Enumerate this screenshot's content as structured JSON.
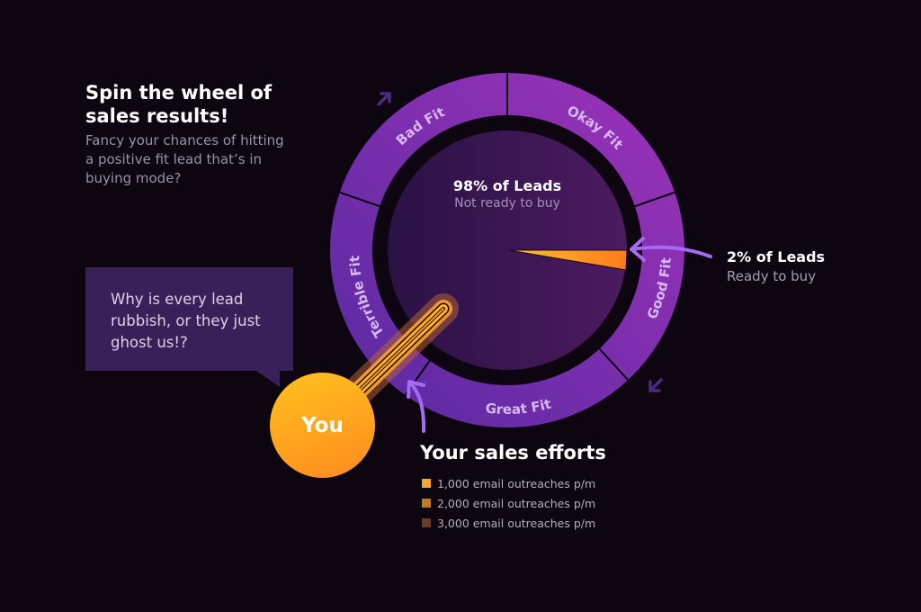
{
  "intro": {
    "title": "Spin the wheel of sales results!",
    "subtitle": "Fancy your chances of hitting a positive fit lead that’s in buying mode?"
  },
  "bubble": {
    "text": "Why is every lead rubbish, or they just ghost us!?"
  },
  "wheel": {
    "segments": [
      "Bad Fit",
      "Okay Fit",
      "Good Fit",
      "Great Fit",
      "Terrible Fit"
    ],
    "center_main": "98% of Leads",
    "center_sub": "Not ready to buy",
    "ready_share_percent": 2,
    "not_ready_share_percent": 98
  },
  "callout": {
    "main": "2% of Leads",
    "sub": "Ready to buy"
  },
  "you": {
    "label": "You"
  },
  "legend": {
    "title": "Your sales efforts",
    "items": [
      {
        "label": "1,000 email outreaches p/m",
        "color": "#f7a524"
      },
      {
        "label": "2,000 email outreaches p/m",
        "color": "#c07822"
      },
      {
        "label": "3,000 email outreaches p/m",
        "color": "#6b3a22"
      }
    ]
  },
  "colors": {
    "background": "#0d0610",
    "ring": "#7a32b0",
    "accent": "#ff8a1f",
    "arrow": "#a46af0"
  }
}
